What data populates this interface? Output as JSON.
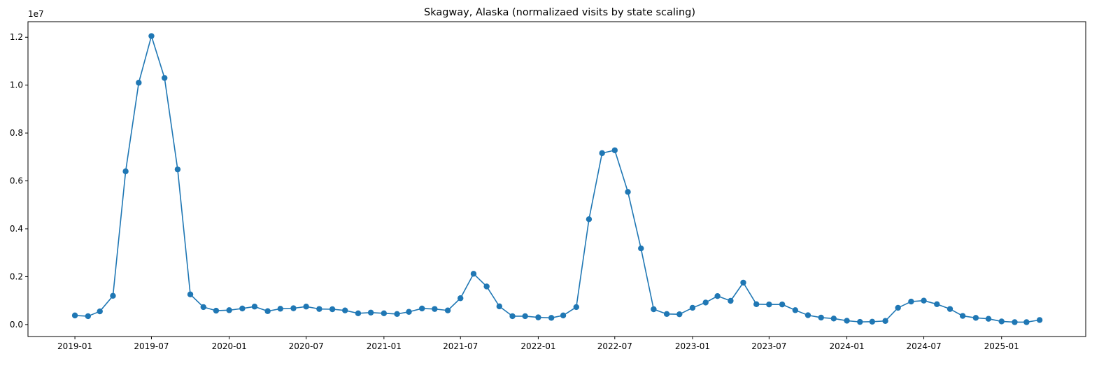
{
  "chart_data": {
    "type": "line",
    "title": "Skagway, Alaska (normalizaed visits by state scaling)",
    "xlabel": "",
    "ylabel": "",
    "y_multiplier_label": "1e7",
    "y_scale_factor": 10000000,
    "series_color": "#1f77b4",
    "grid": false,
    "xlim": [
      "2018-09-12",
      "2025-07-19"
    ],
    "ylim": [
      -0.05,
      1.265
    ],
    "x_ticks": [
      {
        "date": "2019-01-01",
        "label": "2019-01"
      },
      {
        "date": "2019-07-01",
        "label": "2019-07"
      },
      {
        "date": "2020-01-01",
        "label": "2020-01"
      },
      {
        "date": "2020-07-01",
        "label": "2020-07"
      },
      {
        "date": "2021-01-01",
        "label": "2021-01"
      },
      {
        "date": "2021-07-01",
        "label": "2021-07"
      },
      {
        "date": "2022-01-01",
        "label": "2022-01"
      },
      {
        "date": "2022-07-01",
        "label": "2022-07"
      },
      {
        "date": "2023-01-01",
        "label": "2023-01"
      },
      {
        "date": "2023-07-01",
        "label": "2023-07"
      },
      {
        "date": "2024-01-01",
        "label": "2024-01"
      },
      {
        "date": "2024-07-01",
        "label": "2024-07"
      },
      {
        "date": "2025-01-01",
        "label": "2025-01"
      }
    ],
    "y_ticks": [
      {
        "value": 0.0,
        "label": "0.0"
      },
      {
        "value": 0.2,
        "label": "0.2"
      },
      {
        "value": 0.4,
        "label": "0.4"
      },
      {
        "value": 0.6,
        "label": "0.6"
      },
      {
        "value": 0.8,
        "label": "0.8"
      },
      {
        "value": 1.0,
        "label": "1.0"
      },
      {
        "value": 1.2,
        "label": "1.2"
      }
    ],
    "x": [
      "2019-01-01",
      "2019-02-01",
      "2019-03-01",
      "2019-04-01",
      "2019-05-01",
      "2019-06-01",
      "2019-07-01",
      "2019-08-01",
      "2019-09-01",
      "2019-10-01",
      "2019-11-01",
      "2019-12-01",
      "2020-01-01",
      "2020-02-01",
      "2020-03-01",
      "2020-04-01",
      "2020-05-01",
      "2020-06-01",
      "2020-07-01",
      "2020-08-01",
      "2020-09-01",
      "2020-10-01",
      "2020-11-01",
      "2020-12-01",
      "2021-01-01",
      "2021-02-01",
      "2021-03-01",
      "2021-04-01",
      "2021-05-01",
      "2021-06-01",
      "2021-07-01",
      "2021-08-01",
      "2021-09-01",
      "2021-10-01",
      "2021-11-01",
      "2021-12-01",
      "2022-01-01",
      "2022-02-01",
      "2022-03-01",
      "2022-04-01",
      "2022-05-01",
      "2022-06-01",
      "2022-07-01",
      "2022-08-01",
      "2022-09-01",
      "2022-10-01",
      "2022-11-01",
      "2022-12-01",
      "2023-01-01",
      "2023-02-01",
      "2023-03-01",
      "2023-04-01",
      "2023-05-01",
      "2023-06-01",
      "2023-07-01",
      "2023-08-01",
      "2023-09-01",
      "2023-10-01",
      "2023-11-01",
      "2023-12-01",
      "2024-01-01",
      "2024-02-01",
      "2024-03-01",
      "2024-04-01",
      "2024-05-01",
      "2024-06-01",
      "2024-07-01",
      "2024-08-01",
      "2024-09-01",
      "2024-10-01",
      "2024-11-01",
      "2024-12-01",
      "2025-01-01",
      "2025-02-01",
      "2025-03-01",
      "2025-04-01"
    ],
    "y": [
      0.038,
      0.035,
      0.055,
      0.12,
      0.64,
      1.01,
      1.205,
      1.03,
      0.648,
      0.126,
      0.073,
      0.058,
      0.06,
      0.067,
      0.075,
      0.056,
      0.066,
      0.068,
      0.075,
      0.065,
      0.064,
      0.059,
      0.047,
      0.05,
      0.047,
      0.044,
      0.053,
      0.067,
      0.065,
      0.059,
      0.11,
      0.212,
      0.159,
      0.076,
      0.035,
      0.035,
      0.03,
      0.028,
      0.038,
      0.073,
      0.44,
      0.716,
      0.728,
      0.554,
      0.318,
      0.064,
      0.044,
      0.043,
      0.07,
      0.092,
      0.119,
      0.099,
      0.175,
      0.085,
      0.084,
      0.084,
      0.06,
      0.039,
      0.029,
      0.025,
      0.016,
      0.011,
      0.012,
      0.015,
      0.07,
      0.096,
      0.1,
      0.085,
      0.065,
      0.036,
      0.028,
      0.024,
      0.013,
      0.01,
      0.01,
      0.019
    ]
  }
}
